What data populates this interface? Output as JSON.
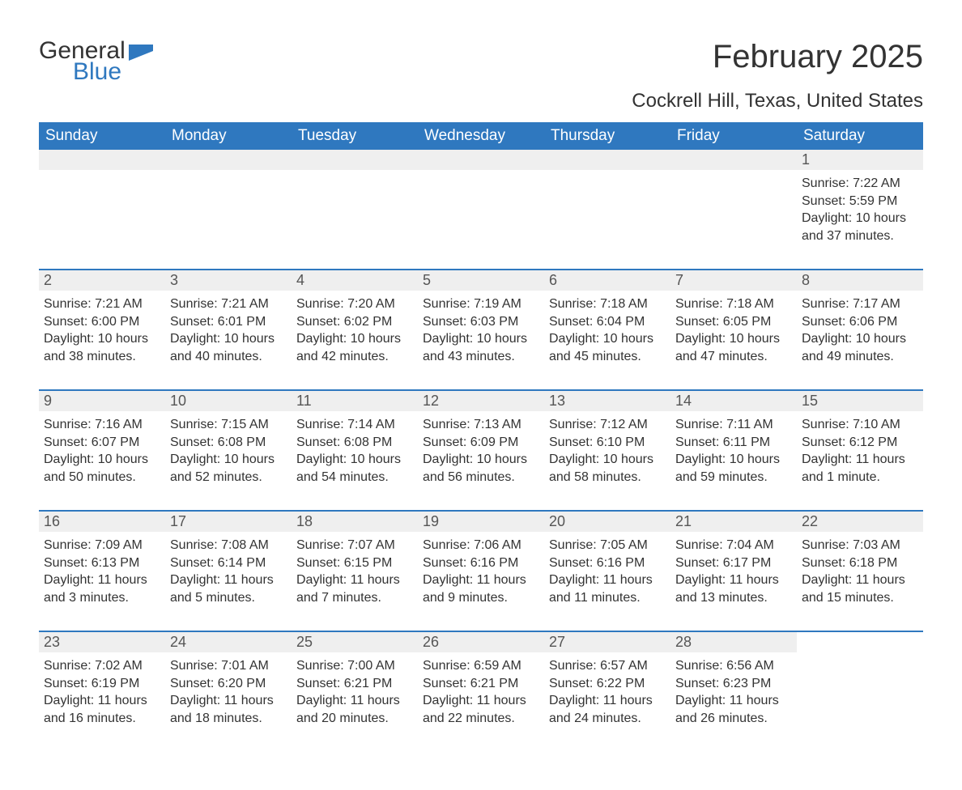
{
  "logo": {
    "text_general": "General",
    "text_blue": "Blue",
    "icon_color": "#2f78bf"
  },
  "title": "February 2025",
  "location": "Cockrell Hill, Texas, United States",
  "colors": {
    "header_bg": "#2f78bf",
    "header_text": "#ffffff",
    "daynum_bg": "#efefef",
    "text": "#333333",
    "rule": "#2f78bf"
  },
  "day_headers": [
    "Sunday",
    "Monday",
    "Tuesday",
    "Wednesday",
    "Thursday",
    "Friday",
    "Saturday"
  ],
  "weeks": [
    [
      null,
      null,
      null,
      null,
      null,
      null,
      {
        "n": "1",
        "sunrise": "Sunrise: 7:22 AM",
        "sunset": "Sunset: 5:59 PM",
        "daylight": "Daylight: 10 hours and 37 minutes."
      }
    ],
    [
      {
        "n": "2",
        "sunrise": "Sunrise: 7:21 AM",
        "sunset": "Sunset: 6:00 PM",
        "daylight": "Daylight: 10 hours and 38 minutes."
      },
      {
        "n": "3",
        "sunrise": "Sunrise: 7:21 AM",
        "sunset": "Sunset: 6:01 PM",
        "daylight": "Daylight: 10 hours and 40 minutes."
      },
      {
        "n": "4",
        "sunrise": "Sunrise: 7:20 AM",
        "sunset": "Sunset: 6:02 PM",
        "daylight": "Daylight: 10 hours and 42 minutes."
      },
      {
        "n": "5",
        "sunrise": "Sunrise: 7:19 AM",
        "sunset": "Sunset: 6:03 PM",
        "daylight": "Daylight: 10 hours and 43 minutes."
      },
      {
        "n": "6",
        "sunrise": "Sunrise: 7:18 AM",
        "sunset": "Sunset: 6:04 PM",
        "daylight": "Daylight: 10 hours and 45 minutes."
      },
      {
        "n": "7",
        "sunrise": "Sunrise: 7:18 AM",
        "sunset": "Sunset: 6:05 PM",
        "daylight": "Daylight: 10 hours and 47 minutes."
      },
      {
        "n": "8",
        "sunrise": "Sunrise: 7:17 AM",
        "sunset": "Sunset: 6:06 PM",
        "daylight": "Daylight: 10 hours and 49 minutes."
      }
    ],
    [
      {
        "n": "9",
        "sunrise": "Sunrise: 7:16 AM",
        "sunset": "Sunset: 6:07 PM",
        "daylight": "Daylight: 10 hours and 50 minutes."
      },
      {
        "n": "10",
        "sunrise": "Sunrise: 7:15 AM",
        "sunset": "Sunset: 6:08 PM",
        "daylight": "Daylight: 10 hours and 52 minutes."
      },
      {
        "n": "11",
        "sunrise": "Sunrise: 7:14 AM",
        "sunset": "Sunset: 6:08 PM",
        "daylight": "Daylight: 10 hours and 54 minutes."
      },
      {
        "n": "12",
        "sunrise": "Sunrise: 7:13 AM",
        "sunset": "Sunset: 6:09 PM",
        "daylight": "Daylight: 10 hours and 56 minutes."
      },
      {
        "n": "13",
        "sunrise": "Sunrise: 7:12 AM",
        "sunset": "Sunset: 6:10 PM",
        "daylight": "Daylight: 10 hours and 58 minutes."
      },
      {
        "n": "14",
        "sunrise": "Sunrise: 7:11 AM",
        "sunset": "Sunset: 6:11 PM",
        "daylight": "Daylight: 10 hours and 59 minutes."
      },
      {
        "n": "15",
        "sunrise": "Sunrise: 7:10 AM",
        "sunset": "Sunset: 6:12 PM",
        "daylight": "Daylight: 11 hours and 1 minute."
      }
    ],
    [
      {
        "n": "16",
        "sunrise": "Sunrise: 7:09 AM",
        "sunset": "Sunset: 6:13 PM",
        "daylight": "Daylight: 11 hours and 3 minutes."
      },
      {
        "n": "17",
        "sunrise": "Sunrise: 7:08 AM",
        "sunset": "Sunset: 6:14 PM",
        "daylight": "Daylight: 11 hours and 5 minutes."
      },
      {
        "n": "18",
        "sunrise": "Sunrise: 7:07 AM",
        "sunset": "Sunset: 6:15 PM",
        "daylight": "Daylight: 11 hours and 7 minutes."
      },
      {
        "n": "19",
        "sunrise": "Sunrise: 7:06 AM",
        "sunset": "Sunset: 6:16 PM",
        "daylight": "Daylight: 11 hours and 9 minutes."
      },
      {
        "n": "20",
        "sunrise": "Sunrise: 7:05 AM",
        "sunset": "Sunset: 6:16 PM",
        "daylight": "Daylight: 11 hours and 11 minutes."
      },
      {
        "n": "21",
        "sunrise": "Sunrise: 7:04 AM",
        "sunset": "Sunset: 6:17 PM",
        "daylight": "Daylight: 11 hours and 13 minutes."
      },
      {
        "n": "22",
        "sunrise": "Sunrise: 7:03 AM",
        "sunset": "Sunset: 6:18 PM",
        "daylight": "Daylight: 11 hours and 15 minutes."
      }
    ],
    [
      {
        "n": "23",
        "sunrise": "Sunrise: 7:02 AM",
        "sunset": "Sunset: 6:19 PM",
        "daylight": "Daylight: 11 hours and 16 minutes."
      },
      {
        "n": "24",
        "sunrise": "Sunrise: 7:01 AM",
        "sunset": "Sunset: 6:20 PM",
        "daylight": "Daylight: 11 hours and 18 minutes."
      },
      {
        "n": "25",
        "sunrise": "Sunrise: 7:00 AM",
        "sunset": "Sunset: 6:21 PM",
        "daylight": "Daylight: 11 hours and 20 minutes."
      },
      {
        "n": "26",
        "sunrise": "Sunrise: 6:59 AM",
        "sunset": "Sunset: 6:21 PM",
        "daylight": "Daylight: 11 hours and 22 minutes."
      },
      {
        "n": "27",
        "sunrise": "Sunrise: 6:57 AM",
        "sunset": "Sunset: 6:22 PM",
        "daylight": "Daylight: 11 hours and 24 minutes."
      },
      {
        "n": "28",
        "sunrise": "Sunrise: 6:56 AM",
        "sunset": "Sunset: 6:23 PM",
        "daylight": "Daylight: 11 hours and 26 minutes."
      },
      null
    ]
  ]
}
